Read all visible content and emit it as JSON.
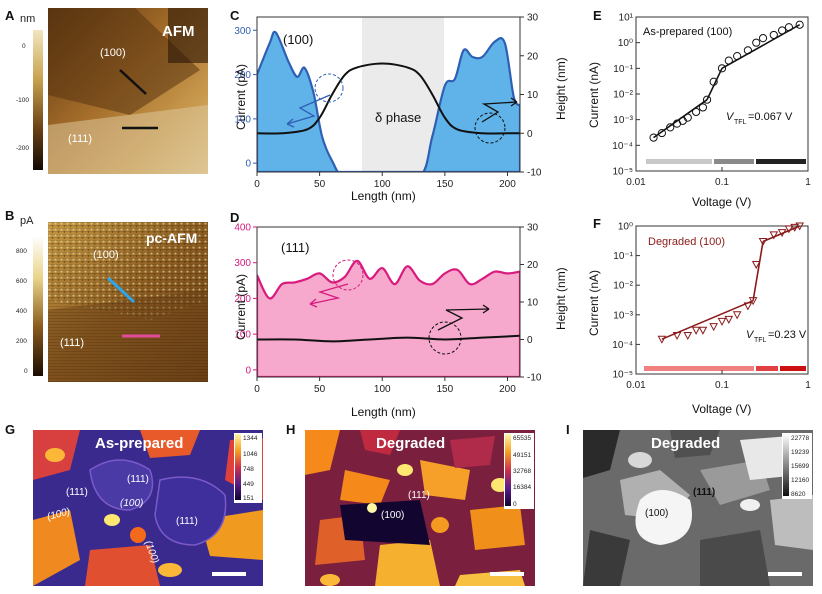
{
  "panels": {
    "A": {
      "label": "A",
      "unit": "nm",
      "badge": "AFM",
      "region_a": "(100)",
      "region_b": "(111)",
      "scale_ticks": [
        "0",
        "-100",
        "-200"
      ]
    },
    "B": {
      "label": "B",
      "unit": "pA",
      "badge": "pc-AFM",
      "region_a": "(100)",
      "region_b": "(111)",
      "scale_ticks": [
        "800",
        "600",
        "400",
        "200",
        "0"
      ]
    },
    "C": {
      "label": "C",
      "tag": "(100)",
      "phase_label": "δ phase",
      "xlabel": "Length (nm)",
      "ylabel_left": "Current (pA)",
      "ylabel_right": "Height (nm)",
      "left_ticks": [
        "0",
        "100",
        "200",
        "300"
      ],
      "right_ticks": [
        "-10",
        "0",
        "10",
        "20",
        "30"
      ],
      "x_ticks": [
        "0",
        "50",
        "100",
        "150",
        "200"
      ]
    },
    "D": {
      "label": "D",
      "tag": "(111)",
      "xlabel": "Length (nm)",
      "ylabel_left": "Current (pA)",
      "ylabel_right": "Height (nm)",
      "left_ticks": [
        "0",
        "100",
        "200",
        "300",
        "400"
      ],
      "right_ticks": [
        "-10",
        "0",
        "10",
        "20",
        "30"
      ],
      "x_ticks": [
        "0",
        "50",
        "100",
        "150",
        "200"
      ]
    },
    "E": {
      "label": "E",
      "title": "As-prepared (100)",
      "vtfl_v": "V",
      "vtfl_sub": "TFL",
      "vtfl_val": "=0.067 V",
      "xlabel": "Voltage (V)",
      "ylabel": "Current (nA)",
      "y_ticks": [
        "10⁻⁵",
        "10⁻⁴",
        "10⁻³",
        "10⁻²",
        "10⁻¹",
        "10⁰",
        "10¹"
      ],
      "x_ticks": [
        "0.01",
        "0.1",
        "1"
      ]
    },
    "F": {
      "label": "F",
      "title": "Degraded (100)",
      "vtfl_v": "V",
      "vtfl_sub": "TFL",
      "vtfl_val": "=0.23 V",
      "xlabel": "Voltage (V)",
      "ylabel": "Current (nA)",
      "y_ticks": [
        "10⁻⁵",
        "10⁻⁴",
        "10⁻³",
        "10⁻²",
        "10⁻¹",
        "10⁰"
      ],
      "x_ticks": [
        "0.01",
        "0.1",
        "1"
      ]
    },
    "G": {
      "label": "G",
      "title": "As-prepared",
      "grains": [
        "(111)",
        "(111)",
        "(100)",
        "(111)",
        "(100)",
        "(100)"
      ],
      "cbar": [
        "1344",
        "1046",
        "748",
        "449",
        "151"
      ]
    },
    "H": {
      "label": "H",
      "title": "Degraded",
      "grains": [
        "(111)",
        "(100)"
      ],
      "cbar": [
        "65535",
        "49151",
        "32768",
        "16384",
        "0"
      ]
    },
    "I": {
      "label": "I",
      "title": "Degraded",
      "grains": [
        "(111)",
        "(100)"
      ],
      "cbar": [
        "22778",
        "19239",
        "15699",
        "12160",
        "8620"
      ]
    }
  },
  "colors": {
    "blue": "#2f5fb4",
    "blue_fill": "#5fb3e8",
    "pink": "#d81b7e",
    "pink_fill": "#f6a9cc",
    "darkred": "#8b1a1a"
  },
  "chart_data": [
    {
      "type": "area",
      "panel": "C",
      "title": "(100)",
      "xlabel": "Length (nm)",
      "ylabel": "Current (pA)",
      "ylim": [
        -20,
        330
      ],
      "xlim": [
        0,
        210
      ],
      "series": [
        {
          "name": "Current",
          "x": [
            0,
            10,
            15,
            25,
            32,
            38,
            45,
            52,
            60,
            70,
            100,
            130,
            140,
            150,
            158,
            165,
            172,
            180,
            190,
            198,
            205,
            210
          ],
          "values": [
            200,
            270,
            295,
            230,
            195,
            215,
            160,
            60,
            5,
            -30,
            -30,
            -30,
            60,
            175,
            190,
            255,
            240,
            240,
            275,
            270,
            150,
            130
          ]
        },
        {
          "name": "Height",
          "axis": "right",
          "x": [
            0,
            20,
            40,
            50,
            60,
            70,
            80,
            100,
            120,
            130,
            140,
            150,
            160,
            180,
            200,
            210
          ],
          "values": [
            0,
            0,
            1,
            4,
            10,
            15,
            17,
            18,
            17,
            15,
            10,
            4,
            1,
            0,
            0,
            0
          ]
        }
      ]
    },
    {
      "type": "area",
      "panel": "D",
      "title": "(111)",
      "xlabel": "Length (nm)",
      "ylabel": "Current (pA)",
      "ylim": [
        -20,
        400
      ],
      "xlim": [
        0,
        210
      ],
      "series": [
        {
          "name": "Current",
          "x": [
            0,
            10,
            20,
            30,
            40,
            50,
            60,
            70,
            80,
            90,
            100,
            110,
            120,
            130,
            140,
            150,
            160,
            170,
            180,
            190,
            200,
            210
          ],
          "values": [
            265,
            200,
            240,
            245,
            255,
            270,
            245,
            260,
            305,
            255,
            285,
            240,
            290,
            250,
            240,
            270,
            280,
            240,
            255,
            275,
            270,
            275
          ]
        },
        {
          "name": "Height",
          "axis": "right",
          "x": [
            0,
            30,
            60,
            90,
            120,
            150,
            180,
            210
          ],
          "values": [
            0,
            0,
            -0.5,
            0,
            0.5,
            0,
            0.5,
            1
          ]
        }
      ]
    },
    {
      "type": "scatter",
      "panel": "E",
      "title": "As-prepared (100)",
      "xlabel": "Voltage (V)",
      "ylabel": "Current (nA)",
      "xlim": [
        0.01,
        1
      ],
      "ylim": [
        1e-05,
        10
      ],
      "x": [
        0.016,
        0.02,
        0.025,
        0.03,
        0.035,
        0.04,
        0.05,
        0.06,
        0.067,
        0.08,
        0.1,
        0.12,
        0.15,
        0.2,
        0.25,
        0.3,
        0.4,
        0.5,
        0.6,
        0.8
      ],
      "values": [
        0.0002,
        0.0003,
        0.0005,
        0.0007,
        0.0009,
        0.0012,
        0.002,
        0.003,
        0.006,
        0.03,
        0.1,
        0.2,
        0.3,
        0.5,
        1,
        1.5,
        2,
        3,
        4,
        5
      ]
    },
    {
      "type": "scatter",
      "panel": "F",
      "title": "Degraded (100)",
      "xlabel": "Voltage (V)",
      "ylabel": "Current (nA)",
      "xlim": [
        0.01,
        1
      ],
      "ylim": [
        1e-05,
        1
      ],
      "x": [
        0.02,
        0.03,
        0.04,
        0.05,
        0.06,
        0.08,
        0.1,
        0.12,
        0.15,
        0.2,
        0.23,
        0.25,
        0.3,
        0.4,
        0.5,
        0.6,
        0.7,
        0.8
      ],
      "values": [
        0.00015,
        0.0002,
        0.0002,
        0.0003,
        0.0003,
        0.0004,
        0.0006,
        0.0007,
        0.001,
        0.002,
        0.003,
        0.05,
        0.3,
        0.5,
        0.6,
        0.8,
        0.9,
        1
      ]
    }
  ]
}
